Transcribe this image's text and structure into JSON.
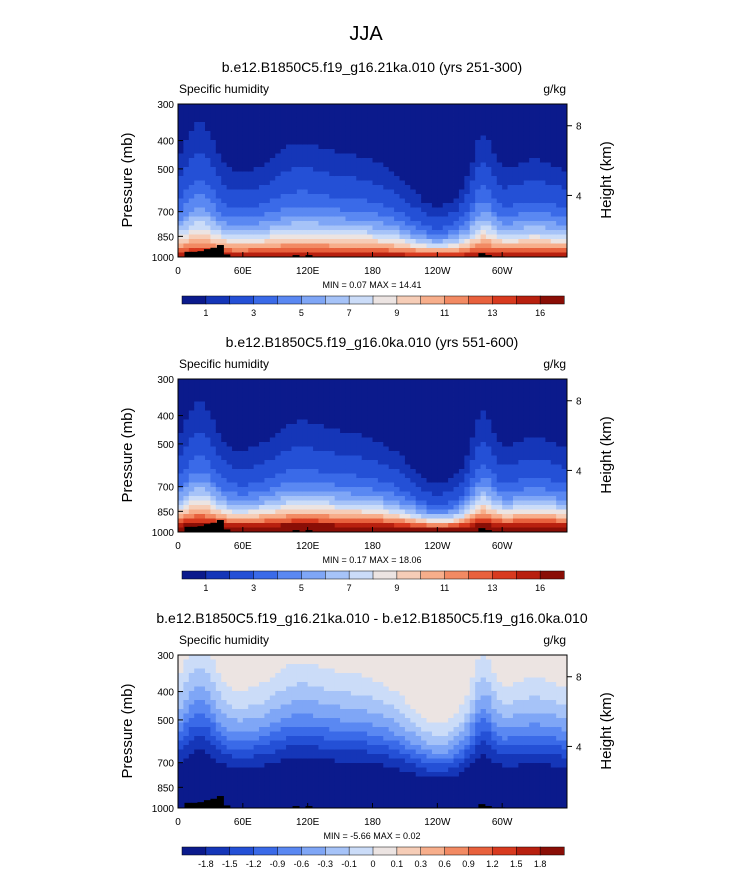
{
  "figure_title": "JJA",
  "colors": {
    "sequential": [
      "#0b1a8c",
      "#1536b8",
      "#2450d6",
      "#3a6ae8",
      "#5a88f2",
      "#7fa6f6",
      "#a6c3f8",
      "#cbdcf8",
      "#ece4e2",
      "#f6cdb7",
      "#f7ae8b",
      "#f28a63",
      "#e8613d",
      "#d83a1f",
      "#b8200f",
      "#8a0e06"
    ],
    "diverging": [
      "#0b1a8c",
      "#1536b8",
      "#2450d6",
      "#3a6ae8",
      "#5a88f2",
      "#7fa6f6",
      "#a6c3f8",
      "#cbdcf8",
      "#ece4e2",
      "#f6cdb7",
      "#f7ae8b",
      "#f28a63",
      "#e8613d",
      "#d83a1f",
      "#b8200f",
      "#8a0e06"
    ],
    "terrain": "#000000"
  },
  "chart_data": [
    {
      "type": "contour",
      "title": "b.e12.B1850C5.f19_g16.21ka.010 (yrs 251-300)",
      "left_label": "Specific humidity",
      "units": "g/kg",
      "ylabel": "Pressure (mb)",
      "ylabel_right": "Height (km)",
      "xticks": [
        "0",
        "60E",
        "120E",
        "180",
        "120W",
        "60W"
      ],
      "yticks": [
        "300",
        "400",
        "500",
        "700",
        "850",
        "1000"
      ],
      "yticks_right": [
        "8",
        "4"
      ],
      "stats_text": "MIN =   0.07  MAX =   14.41",
      "min": 0.07,
      "max": 14.41,
      "levels": [
        0.5,
        1,
        2,
        3,
        4,
        5,
        6,
        7,
        8,
        9,
        10,
        11,
        12,
        13,
        14
      ],
      "colorbar_labels": [
        "1",
        "3",
        "5",
        "7",
        "9",
        "11",
        "13",
        "16"
      ],
      "surface_value": 14.4,
      "decay": 1.0
    },
    {
      "type": "contour",
      "title": "b.e12.B1850C5.f19_g16.0ka.010 (yrs 551-600)",
      "left_label": "Specific humidity",
      "units": "g/kg",
      "ylabel": "Pressure (mb)",
      "ylabel_right": "Height (km)",
      "xticks": [
        "0",
        "60E",
        "120E",
        "180",
        "120W",
        "60W"
      ],
      "yticks": [
        "300",
        "400",
        "500",
        "700",
        "850",
        "1000"
      ],
      "yticks_right": [
        "8",
        "4"
      ],
      "stats_text": "MIN =   0.17  MAX =   18.06",
      "min": 0.17,
      "max": 18.06,
      "levels": [
        0.5,
        1,
        2,
        3,
        4,
        5,
        6,
        7,
        8,
        9,
        10,
        11,
        12,
        13,
        14
      ],
      "colorbar_labels": [
        "1",
        "3",
        "5",
        "7",
        "9",
        "11",
        "13",
        "16"
      ],
      "surface_value": 18.0,
      "decay": 0.85
    },
    {
      "type": "contour",
      "title": "b.e12.B1850C5.f19_g16.21ka.010 - b.e12.B1850C5.f19_g16.0ka.010",
      "left_label": "Specific humidity",
      "units": "g/kg",
      "ylabel": "Pressure (mb)",
      "ylabel_right": "Height (km)",
      "xticks": [
        "0",
        "60E",
        "120E",
        "180",
        "120W",
        "60W"
      ],
      "yticks": [
        "300",
        "400",
        "500",
        "700",
        "850",
        "1000"
      ],
      "yticks_right": [
        "8",
        "4"
      ],
      "stats_text": "MIN =  -5.66  MAX =   0.02",
      "min": -5.66,
      "max": 0.02,
      "levels": [
        -1.8,
        -1.5,
        -1.2,
        -0.9,
        -0.6,
        -0.3,
        -0.1,
        0,
        0.1,
        0.3,
        0.6,
        0.9,
        1.2,
        1.5,
        1.8
      ],
      "colorbar_labels": [
        "-1.8",
        "-1.5",
        "-1.2",
        "-0.9",
        "-0.6",
        "-0.3",
        "-0.1",
        "0",
        "0.1",
        "0.3",
        "0.6",
        "0.9",
        "1.2",
        "1.5",
        "1.8"
      ],
      "surface_value": -5.6,
      "decay": 1.0
    }
  ],
  "terrain_profile": {
    "lon_deg": [
      0,
      6,
      12,
      18,
      24,
      30,
      36,
      42,
      48,
      100,
      106,
      112,
      118,
      124,
      272,
      278,
      284,
      290,
      296,
      302
    ],
    "top_mb": [
      1000,
      960,
      960,
      955,
      940,
      930,
      910,
      980,
      1000,
      1000,
      985,
      1000,
      985,
      1000,
      1000,
      970,
      985,
      995,
      995,
      1000
    ]
  }
}
